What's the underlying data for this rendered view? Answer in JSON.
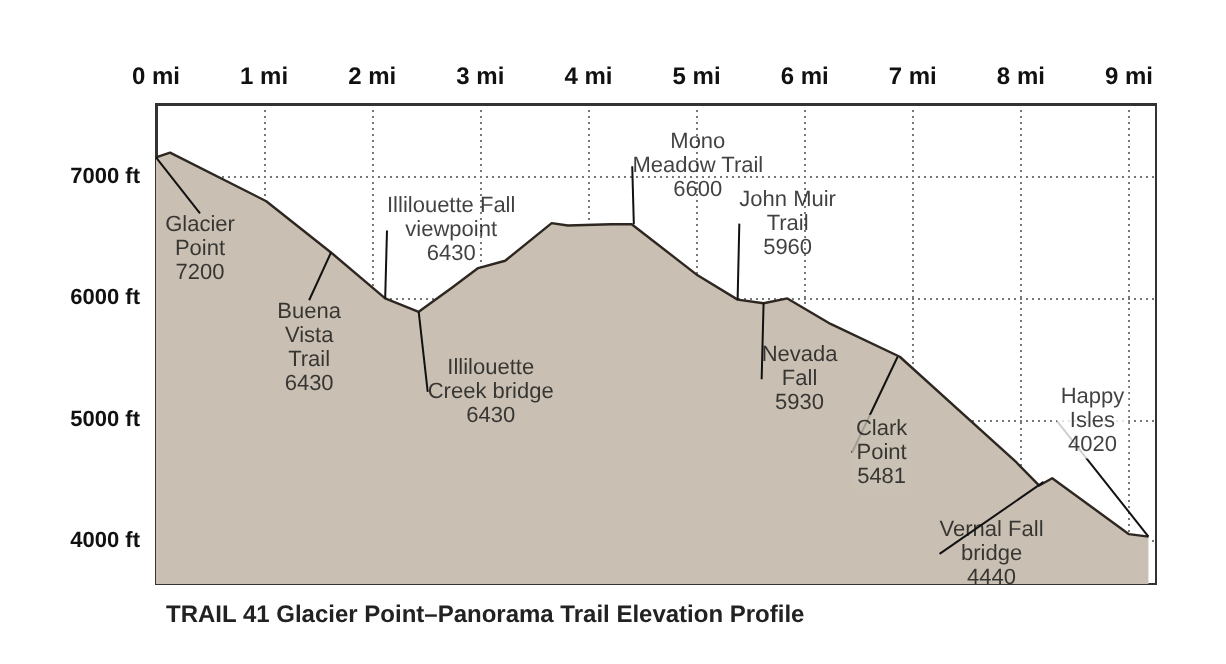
{
  "chart_data": {
    "type": "area",
    "title": "TRAIL 41 Glacier Point–Panorama Trail Elevation Profile",
    "x": [
      0,
      0.13,
      1.02,
      1.63,
      2.12,
      2.43,
      2.74,
      2.98,
      3.23,
      3.66,
      3.81,
      4.21,
      4.4,
      5.01,
      5.38,
      5.62,
      5.84,
      6.24,
      6.88,
      7.96,
      8.17,
      8.29,
      9.0,
      9.18
    ],
    "series": [
      {
        "color": "#c9c0b3",
        "values": [
          7160,
          7200,
          6800,
          6370,
          6000,
          5890,
          6090,
          6250,
          6310,
          6620,
          6600,
          6610,
          6610,
          6190,
          5990,
          5960,
          6000,
          5790,
          5520,
          4650,
          4460,
          4520,
          4060,
          4040
        ]
      }
    ],
    "xlim": [
      0,
      9.25
    ],
    "ylim": [
      3650,
      7600
    ],
    "xticks": [
      {
        "value": 0,
        "label": "0 mi"
      },
      {
        "value": 1,
        "label": "1 mi"
      },
      {
        "value": 2,
        "label": "2 mi"
      },
      {
        "value": 3,
        "label": "3 mi"
      },
      {
        "value": 4,
        "label": "4 mi"
      },
      {
        "value": 5,
        "label": "5 mi"
      },
      {
        "value": 6,
        "label": "6 mi"
      },
      {
        "value": 7,
        "label": "7 mi"
      },
      {
        "value": 8,
        "label": "8 mi"
      },
      {
        "value": 9,
        "label": "9 mi"
      }
    ],
    "yticks": [
      {
        "value": 4000,
        "label": "4000 ft"
      },
      {
        "value": 5000,
        "label": "5000 ft"
      },
      {
        "value": 6000,
        "label": "6000 ft"
      },
      {
        "value": 7000,
        "label": "7000 ft"
      }
    ],
    "grid": true,
    "annotations": [
      {
        "text": "Glacier\nPoint\n7200",
        "x": 0,
        "y": 7160
      },
      {
        "text": "Buena\nVista\nTrail\n6430",
        "x": 1.62,
        "y": 6380
      },
      {
        "text": "Illilouette Fall\nviewpoint\n6430",
        "x": 2.12,
        "y": 6000
      },
      {
        "text": "Illilouette\nCreek bridge\n6430",
        "x": 2.43,
        "y": 5890
      },
      {
        "text": "Mono\nMeadow Trail\n6600",
        "x": 4.42,
        "y": 6610
      },
      {
        "text": "John Muir\nTrail\n5960",
        "x": 5.38,
        "y": 5990
      },
      {
        "text": "Nevada\nFall\n5930",
        "x": 5.62,
        "y": 5960
      },
      {
        "text": "Clark\nPoint\n5481",
        "x": 6.86,
        "y": 5520
      },
      {
        "text": "Vernal Fall\nbridge\n4440",
        "x": 8.21,
        "y": 4490
      },
      {
        "text": "Happy\nIsles\n4020",
        "x": 9.18,
        "y": 4040
      }
    ]
  }
}
